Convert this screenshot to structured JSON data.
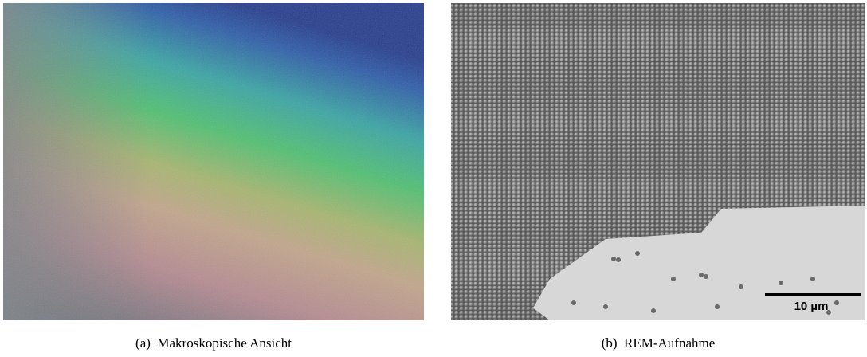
{
  "figures": [
    {
      "caption": "(a)  Makroskopische Ansicht"
    },
    {
      "caption": "(b)  REM-Aufnahme",
      "scale_bar": "10 µm"
    }
  ]
}
